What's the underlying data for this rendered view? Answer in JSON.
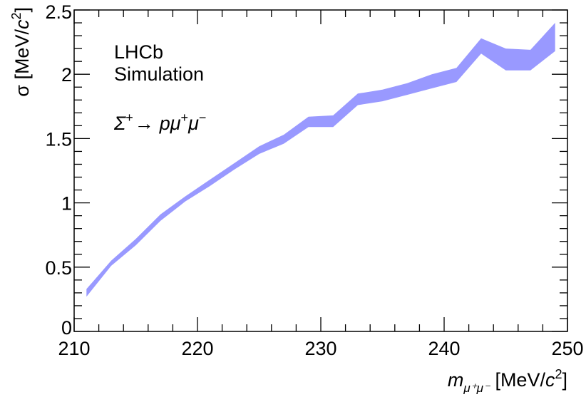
{
  "chart_data": {
    "type": "area",
    "title": "",
    "experiment_label": "LHCb",
    "status_label": "Simulation",
    "decay_label": {
      "parent": "Σ",
      "parent_sup": "+",
      "arrow": "→",
      "daughters_p": "p",
      "mu1": "μ",
      "mu1_sup": "+",
      "mu2": "μ",
      "mu2_sup": "−"
    },
    "xlabel": {
      "symbol": "m",
      "sub": "μ⁺μ⁻",
      "unit_prefix": " [MeV/",
      "unit_c": "c",
      "unit_sup": "2",
      "unit_suffix": "]"
    },
    "ylabel": {
      "symbol": "σ",
      "unit_prefix": " [MeV/",
      "unit_c": "c",
      "unit_sup": "2",
      "unit_suffix": "]"
    },
    "xlim": [
      210,
      250
    ],
    "ylim": [
      0,
      2.5
    ],
    "x_ticks": [
      210,
      220,
      230,
      240,
      250
    ],
    "x_tick_labels": [
      "210",
      "220",
      "230",
      "240",
      "250"
    ],
    "y_ticks": [
      0,
      0.5,
      1,
      1.5,
      2,
      2.5
    ],
    "y_tick_labels": [
      "0",
      "0.5",
      "1",
      "1.5",
      "2",
      "2.5"
    ],
    "grid": false,
    "band_color": "#9999ff",
    "band": {
      "x": [
        211,
        213,
        215,
        217,
        219,
        221,
        223,
        225,
        227,
        229,
        231,
        233,
        235,
        237,
        239,
        241,
        243,
        245,
        247,
        249
      ],
      "upper": [
        0.33,
        0.55,
        0.72,
        0.91,
        1.05,
        1.18,
        1.31,
        1.44,
        1.53,
        1.67,
        1.68,
        1.85,
        1.88,
        1.93,
        2.0,
        2.05,
        2.28,
        2.2,
        2.19,
        2.4
      ],
      "lower": [
        0.27,
        0.51,
        0.67,
        0.86,
        1.01,
        1.13,
        1.26,
        1.38,
        1.46,
        1.59,
        1.59,
        1.76,
        1.79,
        1.84,
        1.89,
        1.94,
        2.16,
        2.03,
        2.03,
        2.18
      ]
    }
  }
}
